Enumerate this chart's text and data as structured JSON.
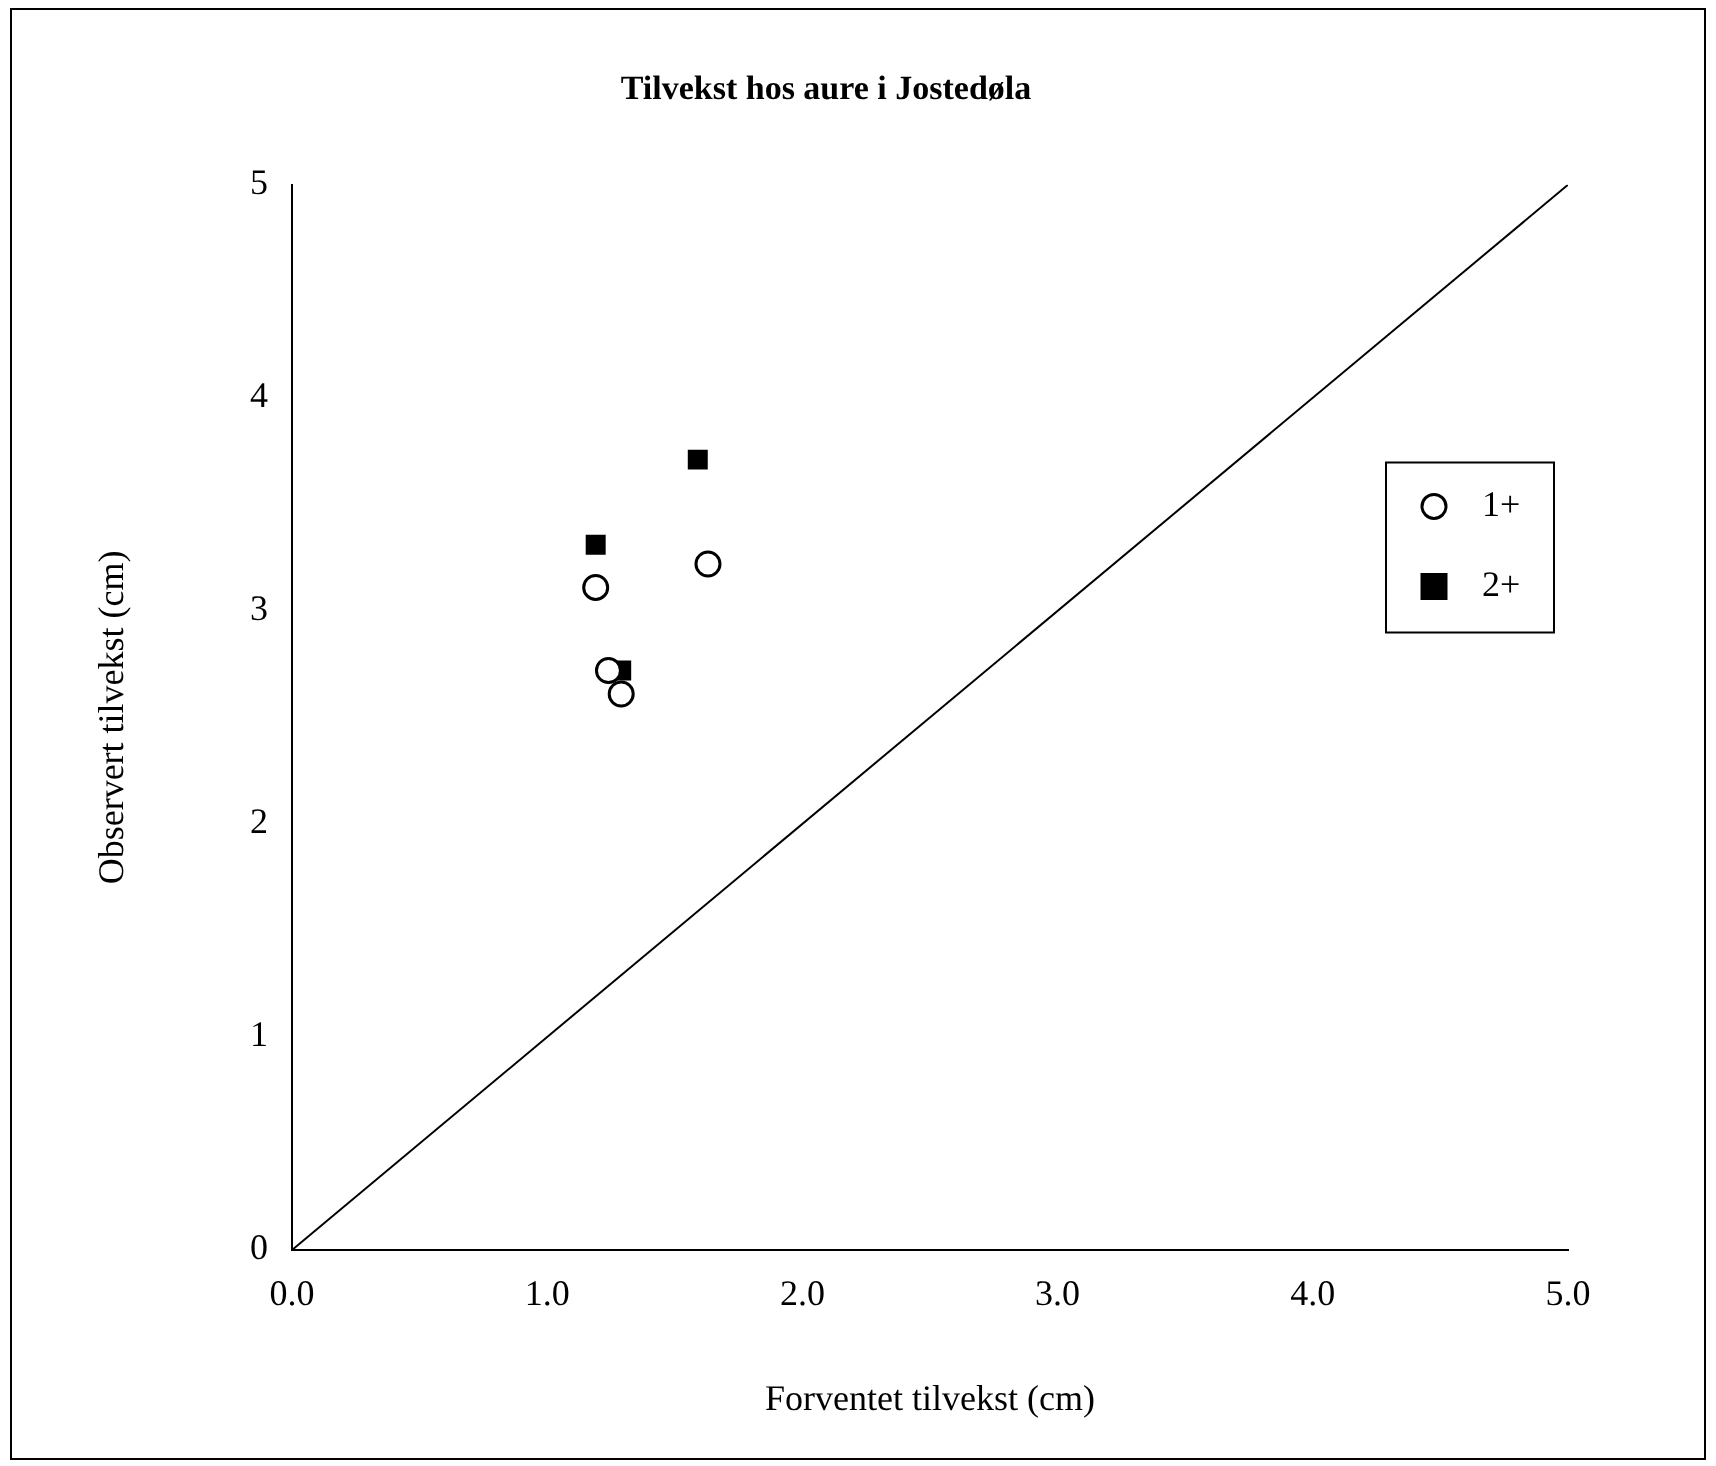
{
  "chart_data": {
    "type": "scatter",
    "title": "Tilvekst hos aure i Jostedøla",
    "xlabel": "Forventet tilvekst (cm)",
    "ylabel": "Observert tilvekst (cm)",
    "xlim": [
      0,
      5
    ],
    "ylim": [
      0,
      5
    ],
    "xticks": [
      {
        "value": 0,
        "label": "0.0"
      },
      {
        "value": 1,
        "label": "1.0"
      },
      {
        "value": 2,
        "label": "2.0"
      },
      {
        "value": 3,
        "label": "3.0"
      },
      {
        "value": 4,
        "label": "4.0"
      },
      {
        "value": 5,
        "label": "5.0"
      }
    ],
    "yticks": [
      0,
      1,
      2,
      3,
      4,
      5
    ],
    "grid": false,
    "legend": "right",
    "series": [
      {
        "name": "1+",
        "color": "#000000",
        "marker": "circle",
        "x": [
          1.19,
          1.63,
          1.24,
          1.29
        ],
        "values": [
          3.11,
          3.22,
          2.72,
          2.61
        ]
      },
      {
        "name": "2+",
        "color": "#000000",
        "marker": "square",
        "x": [
          1.19,
          1.59,
          1.29
        ],
        "values": [
          3.31,
          3.71,
          2.72
        ]
      },
      {
        "type": "line",
        "color": "#000000",
        "marker": "none",
        "x": [
          0,
          5
        ],
        "values": [
          0,
          5
        ]
      }
    ]
  }
}
